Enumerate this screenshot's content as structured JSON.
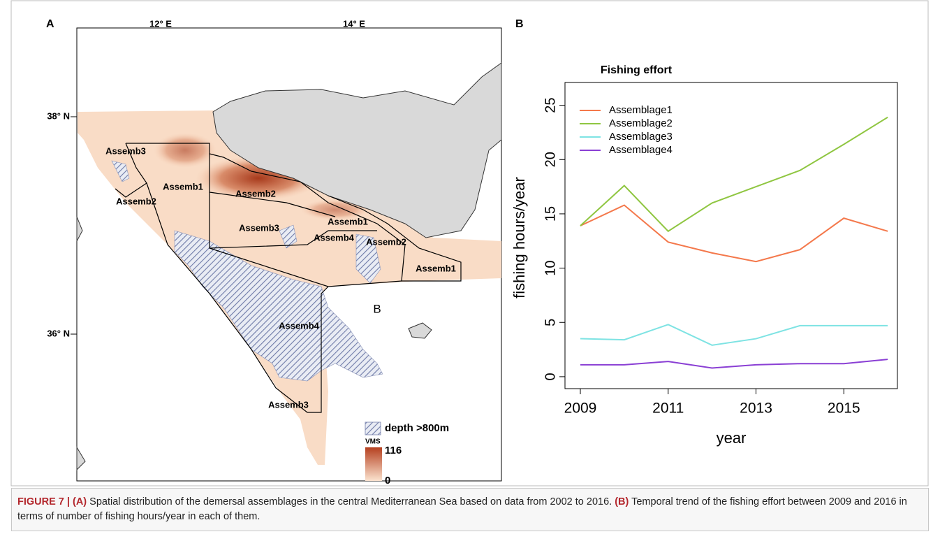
{
  "figure": {
    "panel_a": {
      "label": "A",
      "lon_labels": [
        "12° E",
        "14° E"
      ],
      "lat_labels": [
        "38° N",
        "36° N"
      ],
      "region_labels": [
        "Assemb3",
        "Assemb1",
        "Assemb2",
        "Assemb2",
        "Assemb3",
        "Assemb1",
        "Assemb4",
        "Assemb2",
        "Assemb1",
        "Assemb4",
        "Assemb3"
      ],
      "annotation": "B",
      "legend": {
        "hatch": "depth >800m",
        "scale_title": "VMS",
        "scale_max": "116",
        "scale_min": "0"
      }
    },
    "panel_b_label": "B",
    "caption": {
      "figure_label": "FIGURE 7 | (A)",
      "text_a": " Spatial distribution of the demersal assemblages in the central Mediterranean Sea based on data from 2002 to 2016. ",
      "label_b": "(B)",
      "text_b": " Temporal trend of the fishing effort between 2009 and 2016 in terms of number of fishing hours/year in each of them."
    }
  },
  "chart_data": {
    "type": "line",
    "title": "Fishing effort",
    "x_label": "year",
    "y_label": "fishing hours/year",
    "x": [
      2009,
      2010,
      2011,
      2012,
      2013,
      2014,
      2015,
      2016
    ],
    "series": [
      {
        "name": "Assemblage1",
        "color": "#f4784b",
        "values": [
          13.9,
          15.8,
          12.4,
          11.4,
          10.6,
          11.7,
          14.6,
          13.4
        ]
      },
      {
        "name": "Assemblage2",
        "color": "#8fc641",
        "values": [
          13.9,
          17.6,
          13.4,
          16.0,
          17.5,
          19.0,
          21.4,
          23.9
        ]
      },
      {
        "name": "Assemblage3",
        "color": "#7ee3e3",
        "values": [
          3.5,
          3.4,
          4.8,
          2.9,
          3.5,
          4.7,
          4.7,
          4.7
        ]
      },
      {
        "name": "Assemblage4",
        "color": "#8a3fd4",
        "values": [
          1.1,
          1.1,
          1.4,
          0.8,
          1.1,
          1.2,
          1.2,
          1.6
        ]
      }
    ],
    "xlim": [
      2008.65,
      2016.22
    ],
    "ylim": [
      -1.1,
      27.1
    ],
    "xticks": [
      2009,
      2011,
      2013,
      2015
    ],
    "yticks": [
      0,
      5,
      10,
      15,
      20,
      25
    ],
    "legend": "top-left"
  }
}
